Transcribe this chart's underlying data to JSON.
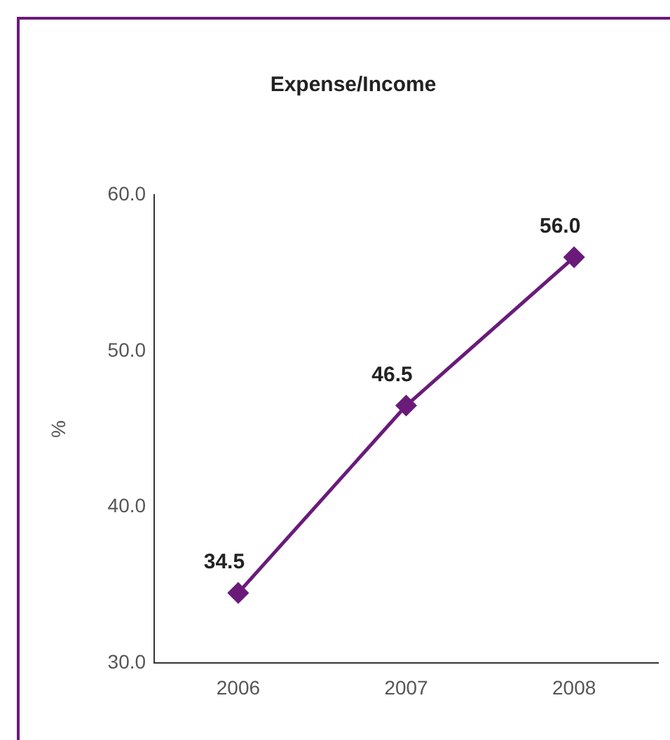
{
  "chart_data": {
    "type": "line",
    "title": "Expense/Income",
    "ylabel": "%",
    "categories": [
      "2006",
      "2007",
      "2008"
    ],
    "series": [
      {
        "color": "#6a1b7a",
        "values": [
          34.5,
          46.5,
          56.0
        ],
        "value_labels": [
          "34.5",
          "46.5",
          "56.0"
        ]
      }
    ],
    "ylim": [
      30,
      60
    ],
    "yticks": [
      {
        "value": 30,
        "label": "30.0"
      },
      {
        "value": 40,
        "label": "40.0"
      },
      {
        "value": 50,
        "label": "50.0"
      },
      {
        "value": 60,
        "label": "60.0"
      }
    ],
    "grid": false,
    "legend": false,
    "marker": "diamond",
    "line_style": "solid"
  }
}
